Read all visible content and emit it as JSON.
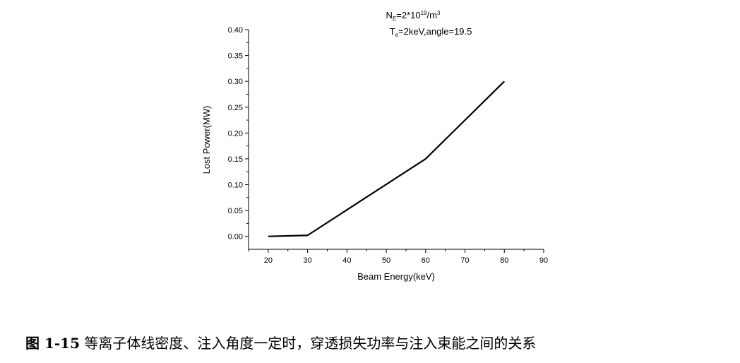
{
  "chart_data": {
    "type": "line",
    "xlabel": "Beam Energy(keV)",
    "ylabel": "Lost Power(MW)",
    "xlim": [
      15,
      90
    ],
    "ylim": [
      -0.025,
      0.4
    ],
    "xticks": [
      "20",
      "30",
      "40",
      "50",
      "60",
      "70",
      "80",
      "90"
    ],
    "yticks": [
      "0.00",
      "0.05",
      "0.10",
      "0.15",
      "0.20",
      "0.25",
      "0.30",
      "0.35",
      "0.40"
    ],
    "series": [
      {
        "x": [
          20,
          30,
          60,
          80
        ],
        "y": [
          0.0,
          0.002,
          0.15,
          0.3
        ],
        "color": "#000000"
      }
    ],
    "grid": false,
    "annotations": {
      "line1": {
        "N": "N",
        "N_sub": "E",
        "eq": "=2*10",
        "exp": "19",
        "unit": "/m",
        "unit_exp": "3"
      },
      "line2": {
        "T": "T",
        "T_sub": "e",
        "rest": "=2keV,angle=19.5"
      }
    }
  },
  "caption": {
    "label": "图 1-15",
    "text": "等离子体线密度、注入角度一定时，穿透损失功率与注入束能之间的关系"
  }
}
